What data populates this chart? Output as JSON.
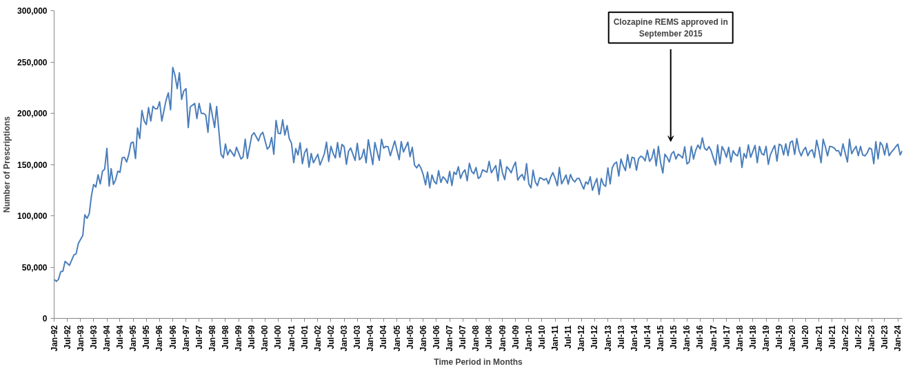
{
  "chart_data": {
    "type": "line",
    "xlabel": "Time Period in Months",
    "ylabel": "Number of Prescriptions",
    "annotations": [
      "Clozapine REMS approved in September 2015"
    ],
    "xlim": [
      "1992-01",
      "2024-03"
    ],
    "ylim": [
      0,
      300000
    ],
    "yticks": [
      0,
      {
        "value": 50000,
        "label": "50,000"
      },
      {
        "value": 100000,
        "label": "100,000"
      },
      {
        "value": 150000,
        "label": "150,000"
      },
      {
        "value": 200000,
        "label": "200,000"
      },
      {
        "value": 250000,
        "label": "250,000"
      },
      {
        "value": 300000,
        "label": "300,000"
      }
    ],
    "xticks": [
      {
        "value": "1992-01",
        "label": "Jan-92"
      },
      {
        "value": "1992-07",
        "label": "Jul-92"
      },
      {
        "value": "1993-01",
        "label": "Jan-93"
      },
      {
        "value": "1993-07",
        "label": "Jul-93"
      },
      {
        "value": "1994-01",
        "label": "Jan-94"
      },
      {
        "value": "1994-07",
        "label": "Jul-94"
      },
      {
        "value": "1995-01",
        "label": "Jan-95"
      },
      {
        "value": "1995-07",
        "label": "Jul-95"
      },
      {
        "value": "1996-01",
        "label": "Jan-96"
      },
      {
        "value": "1996-07",
        "label": "Jul-96"
      },
      {
        "value": "1997-01",
        "label": "Jan-97"
      },
      {
        "value": "1997-07",
        "label": "Jul-97"
      },
      {
        "value": "1998-01",
        "label": "Jan-98"
      },
      {
        "value": "1998-07",
        "label": "Jul-98"
      },
      {
        "value": "1999-01",
        "label": "Jan-99"
      },
      {
        "value": "1999-07",
        "label": "Jul-99"
      },
      {
        "value": "2000-01",
        "label": "Jan-00"
      },
      {
        "value": "2000-07",
        "label": "Jul-00"
      },
      {
        "value": "2001-01",
        "label": "Jan-01"
      },
      {
        "value": "2001-07",
        "label": "Jul-01"
      },
      {
        "value": "2002-01",
        "label": "Jan-02"
      },
      {
        "value": "2002-07",
        "label": "Jul-02"
      },
      {
        "value": "2003-01",
        "label": "Jan-03"
      },
      {
        "value": "2003-07",
        "label": "Jul-03"
      },
      {
        "value": "2004-01",
        "label": "Jan-04"
      },
      {
        "value": "2004-07",
        "label": "Jul-04"
      },
      {
        "value": "2005-01",
        "label": "Jan-05"
      },
      {
        "value": "2005-07",
        "label": "Jul-05"
      },
      {
        "value": "2006-01",
        "label": "Jan-06"
      },
      {
        "value": "2006-07",
        "label": "Jul-06"
      },
      {
        "value": "2007-01",
        "label": "Jan-07"
      },
      {
        "value": "2007-07",
        "label": "Jul-07"
      },
      {
        "value": "2008-01",
        "label": "Jan-08"
      },
      {
        "value": "2008-07",
        "label": "Jul-08"
      },
      {
        "value": "2009-01",
        "label": "Jan-09"
      },
      {
        "value": "2009-07",
        "label": "Jul-09"
      },
      {
        "value": "2010-01",
        "label": "Jan-10"
      },
      {
        "value": "2010-07",
        "label": "Jul-10"
      },
      {
        "value": "2011-01",
        "label": "Jan-11"
      },
      {
        "value": "2011-07",
        "label": "Jul-11"
      },
      {
        "value": "2012-01",
        "label": "Jan-12"
      },
      {
        "value": "2012-07",
        "label": "Jul-12"
      },
      {
        "value": "2013-01",
        "label": "Jan-13"
      },
      {
        "value": "2013-07",
        "label": "Jul-13"
      },
      {
        "value": "2014-01",
        "label": "Jan-14"
      },
      {
        "value": "2014-07",
        "label": "Jul-14"
      },
      {
        "value": "2015-01",
        "label": "Jan-15"
      },
      {
        "value": "2015-07",
        "label": "Jul-15"
      },
      {
        "value": "2016-01",
        "label": "Jan-16"
      },
      {
        "value": "2016-07",
        "label": "Jul-16"
      },
      {
        "value": "2017-01",
        "label": "Jan-17"
      },
      {
        "value": "2017-07",
        "label": "Jul-17"
      },
      {
        "value": "2018-01",
        "label": "Jan-18"
      },
      {
        "value": "2018-07",
        "label": "Jul-18"
      },
      {
        "value": "2019-01",
        "label": "Jan-19"
      },
      {
        "value": "2019-07",
        "label": "Jul-19"
      },
      {
        "value": "2020-01",
        "label": "Jan-20"
      },
      {
        "value": "2020-07",
        "label": "Jul-20"
      },
      {
        "value": "2021-01",
        "label": "Jan-21"
      },
      {
        "value": "2021-07",
        "label": "Jul-21"
      },
      {
        "value": "2022-01",
        "label": "Jan-22"
      },
      {
        "value": "2022-07",
        "label": "Jul-22"
      },
      {
        "value": "2023-01",
        "label": "Jan-23"
      },
      {
        "value": "2023-07",
        "label": "Jul-23"
      },
      {
        "value": "2024-01",
        "label": "Jan-24"
      }
    ],
    "grid": false,
    "marker": "none",
    "line_style": "solid",
    "series": [
      {
        "color": "#4a7ebb",
        "x": [
          "1992-01",
          "1992-02",
          "1992-03",
          "1992-04",
          "1992-05",
          "1992-06",
          "1992-08",
          "1992-10",
          "1992-11",
          "1992-12",
          "1993-02",
          "1993-03",
          "1993-04",
          "1993-05",
          "1993-06",
          "1993-07",
          "1993-08",
          "1993-09",
          "1993-10",
          "1993-11",
          "1993-12",
          "1994-01",
          "1994-02",
          "1994-03",
          "1994-04",
          "1994-05",
          "1994-06",
          "1994-07",
          "1994-08",
          "1994-09",
          "1994-10",
          "1994-11",
          "1994-12",
          "1995-01",
          "1995-02",
          "1995-03",
          "1995-04",
          "1995-05",
          "1995-06",
          "1995-07",
          "1995-08",
          "1995-09",
          "1995-10",
          "1995-11",
          "1995-12",
          "1996-01",
          "1996-02",
          "1996-03",
          "1996-04",
          "1996-05",
          "1996-06",
          "1996-07",
          "1996-08",
          "1996-09",
          "1996-10",
          "1996-11",
          "1996-12",
          "1997-01",
          "1997-02",
          "1997-03",
          "1997-05",
          "1997-06",
          "1997-07",
          "1997-08",
          "1997-09",
          "1997-10",
          "1997-11",
          "1997-12",
          "1998-02",
          "1998-03",
          "1998-05",
          "1998-06",
          "1998-07",
          "1998-08",
          "1998-09",
          "1998-11",
          "1998-12",
          "1999-02",
          "1999-03",
          "1999-04",
          "1999-05",
          "1999-07",
          "1999-08",
          "1999-10",
          "1999-11",
          "1999-12",
          "2000-02",
          "2000-03",
          "2000-04",
          "2000-05",
          "2000-06",
          "2000-07",
          "2000-08",
          "2000-09",
          "2000-10",
          "2000-11",
          "2000-12",
          "2001-01",
          "2001-02",
          "2001-03",
          "2001-04",
          "2001-05",
          "2001-06",
          "2001-07",
          "2001-08",
          "2001-09",
          "2001-10",
          "2001-11",
          "2002-01",
          "2002-02",
          "2002-04",
          "2002-05",
          "2002-06",
          "2002-07",
          "2002-08",
          "2002-09",
          "2002-10",
          "2002-11",
          "2002-12",
          "2003-01",
          "2003-02",
          "2003-03",
          "2003-04",
          "2003-06",
          "2003-07",
          "2003-08",
          "2003-09",
          "2003-10",
          "2003-11",
          "2003-12",
          "2004-02",
          "2004-03",
          "2004-05",
          "2004-06",
          "2004-07",
          "2004-08",
          "2004-09",
          "2004-10",
          "2004-12",
          "2005-02",
          "2005-03",
          "2005-04",
          "2005-06",
          "2005-07",
          "2005-08",
          "2005-09",
          "2005-10",
          "2005-11",
          "2005-12",
          "2006-01",
          "2006-02",
          "2006-03",
          "2006-04",
          "2006-05",
          "2006-06",
          "2006-07",
          "2006-08",
          "2006-09",
          "2006-10",
          "2006-11",
          "2006-12",
          "2007-01",
          "2007-02",
          "2007-03",
          "2007-04",
          "2007-05",
          "2007-06",
          "2007-07",
          "2007-08",
          "2007-09",
          "2007-10",
          "2007-11",
          "2007-12",
          "2008-01",
          "2008-02",
          "2008-03",
          "2008-04",
          "2008-06",
          "2008-07",
          "2008-08",
          "2008-10",
          "2008-11",
          "2008-12",
          "2009-01",
          "2009-02",
          "2009-03",
          "2009-04",
          "2009-05",
          "2009-06",
          "2009-07",
          "2009-08",
          "2009-09",
          "2009-10",
          "2009-11",
          "2009-12",
          "2010-01",
          "2010-02",
          "2010-03",
          "2010-04",
          "2010-05",
          "2010-06",
          "2010-07",
          "2010-08",
          "2010-09",
          "2010-10",
          "2010-11",
          "2010-12",
          "2011-01",
          "2011-02",
          "2011-03",
          "2011-04",
          "2011-05",
          "2011-06",
          "2011-07",
          "2011-08",
          "2011-09",
          "2011-10",
          "2011-11",
          "2011-12",
          "2012-01",
          "2012-02",
          "2012-03",
          "2012-04",
          "2012-05",
          "2012-06",
          "2012-07",
          "2012-08",
          "2012-09",
          "2012-10",
          "2012-11",
          "2012-12",
          "2013-01",
          "2013-02",
          "2013-03",
          "2013-04",
          "2013-05",
          "2013-06",
          "2013-07",
          "2013-08",
          "2013-09",
          "2013-10",
          "2013-11",
          "2013-12",
          "2014-01",
          "2014-02",
          "2014-03",
          "2014-04",
          "2014-05",
          "2014-06",
          "2014-07",
          "2014-08",
          "2014-09",
          "2014-10",
          "2014-11",
          "2014-12",
          "2015-01",
          "2015-02",
          "2015-03",
          "2015-04",
          "2015-05",
          "2015-06",
          "2015-07",
          "2015-08",
          "2015-09",
          "2015-10",
          "2015-11",
          "2015-12",
          "2016-01",
          "2016-02",
          "2016-03",
          "2016-04",
          "2016-05",
          "2016-06",
          "2016-07",
          "2016-08",
          "2016-09",
          "2016-10",
          "2016-11",
          "2016-12",
          "2017-01",
          "2017-02",
          "2017-03",
          "2017-04",
          "2017-05",
          "2017-06",
          "2017-07",
          "2017-08",
          "2017-09",
          "2017-10",
          "2017-11",
          "2017-12",
          "2018-01",
          "2018-02",
          "2018-03",
          "2018-04",
          "2018-05",
          "2018-06",
          "2018-07",
          "2018-08",
          "2018-09",
          "2018-10",
          "2018-11",
          "2018-12",
          "2019-01",
          "2019-02",
          "2019-03",
          "2019-04",
          "2019-05",
          "2019-06",
          "2019-07",
          "2019-08",
          "2019-09",
          "2019-10",
          "2019-11",
          "2019-12",
          "2020-01",
          "2020-02",
          "2020-03",
          "2020-04",
          "2020-05",
          "2020-06",
          "2020-07",
          "2020-08",
          "2020-09",
          "2020-10",
          "2020-11",
          "2020-12",
          "2021-01",
          "2021-02",
          "2021-03",
          "2021-04",
          "2021-05",
          "2021-06",
          "2021-07",
          "2021-08",
          "2021-09",
          "2021-10",
          "2021-11",
          "2021-12",
          "2022-01",
          "2022-02",
          "2022-03",
          "2022-04",
          "2022-05",
          "2022-06",
          "2022-07",
          "2022-08",
          "2022-09",
          "2022-10",
          "2022-11",
          "2022-12",
          "2023-01",
          "2023-02",
          "2023-03",
          "2023-04",
          "2023-05",
          "2023-06",
          "2023-07",
          "2023-08",
          "2023-09",
          "2023-10",
          "2023-11",
          "2023-12",
          "2024-01",
          "2024-02",
          "2024-03"
        ],
        "values": [
          38000,
          36000,
          38000,
          45500,
          46000,
          55600,
          51700,
          61800,
          63000,
          73000,
          80800,
          101000,
          97500,
          102000,
          119500,
          130600,
          128000,
          140000,
          131000,
          143500,
          145500,
          165700,
          129000,
          146000,
          130600,
          135000,
          143500,
          142300,
          156500,
          157000,
          152400,
          160000,
          171000,
          171800,
          155800,
          185600,
          175300,
          202700,
          192400,
          189000,
          205500,
          192400,
          206800,
          204400,
          204400,
          211200,
          192400,
          202700,
          213000,
          219900,
          203400,
          244600,
          237000,
          224000,
          239400,
          213500,
          221700,
          224000,
          186000,
          206200,
          209600,
          194800,
          209600,
          199800,
          199800,
          198200,
          181400,
          209600,
          186000,
          206600,
          160000,
          156500,
          170000,
          159300,
          164500,
          158100,
          166800,
          155400,
          157200,
          174600,
          155800,
          178300,
          181000,
          173000,
          179200,
          181400,
          165000,
          167300,
          176400,
          160000,
          193000,
          180500,
          180000,
          193600,
          178700,
          187900,
          175300,
          170700,
          151700,
          165500,
          159300,
          171200,
          150800,
          161500,
          165500,
          147400,
          160800,
          151700,
          160000,
          149500,
          160400,
          171800,
          152900,
          167700,
          160800,
          156400,
          171400,
          157000,
          169600,
          167300,
          150100,
          162700,
          166100,
          154000,
          170700,
          154700,
          157000,
          165000,
          151700,
          174200,
          149900,
          171400,
          154000,
          174600,
          165900,
          167700,
          167300,
          158600,
          173000,
          154700,
          172300,
          162200,
          171800,
          157700,
          166800,
          149500,
          146700,
          150100,
          146200,
          139800,
          130200,
          142600,
          127200,
          139800,
          133400,
          131100,
          144000,
          132500,
          138000,
          135700,
          131800,
          143300,
          129500,
          142600,
          140300,
          147800,
          136400,
          142100,
          144800,
          134100,
          151200,
          143300,
          141000,
          147100,
          136400,
          138000,
          144800,
          142600,
          153100,
          141900,
          149000,
          134100,
          154700,
          141900,
          135200,
          147800,
          145500,
          141900,
          147800,
          152400,
          134800,
          138200,
          140300,
          134800,
          150800,
          131100,
          127200,
          144400,
          133000,
          129300,
          137100,
          136400,
          134800,
          136400,
          131100,
          137800,
          142100,
          136400,
          129300,
          147100,
          131100,
          135200,
          139800,
          130900,
          140300,
          135200,
          133000,
          136400,
          136400,
          130900,
          126100,
          133000,
          130900,
          138000,
          124900,
          130900,
          136400,
          120800,
          136400,
          130400,
          128800,
          146700,
          131100,
          146700,
          150800,
          152400,
          138700,
          155400,
          149000,
          144000,
          159800,
          146700,
          157000,
          156300,
          144400,
          155400,
          158100,
          157000,
          153600,
          163900,
          153100,
          156300,
          165000,
          148700,
          167700,
          151700,
          141600,
          160000,
          157000,
          152400,
          160500,
          162700,
          155400,
          160000,
          158600,
          156300,
          167300,
          150600,
          152400,
          167700,
          155400,
          163900,
          169000,
          165200,
          176000,
          165700,
          163900,
          167500,
          163400,
          156300,
          149500,
          169100,
          150800,
          167500,
          163400,
          157000,
          166800,
          152400,
          163400,
          159800,
          158400,
          166800,
          147100,
          160800,
          156300,
          169100,
          157000,
          162700,
          168600,
          151700,
          167700,
          160500,
          159300,
          167700,
          150100,
          159300,
          164400,
          168600,
          153300,
          169800,
          168600,
          159300,
          170200,
          158600,
          171600,
          173000,
          159800,
          175300,
          163900,
          158400,
          163900,
          166800,
          158600,
          162900,
          164400,
          156800,
          173700,
          163900,
          151700,
          174600,
          167500,
          158400,
          167700,
          167300,
          166100,
          163400,
          163400,
          158400,
          170200,
          161100,
          152400,
          174600,
          160500,
          164400,
          167700,
          158600,
          167700,
          159300,
          158400,
          161100,
          166100,
          165000,
          150800,
          172300,
          155400,
          171600,
          168600,
          159300,
          170700,
          158600,
          162000,
          164400,
          167300,
          169800,
          159300,
          163400
        ]
      }
    ]
  }
}
